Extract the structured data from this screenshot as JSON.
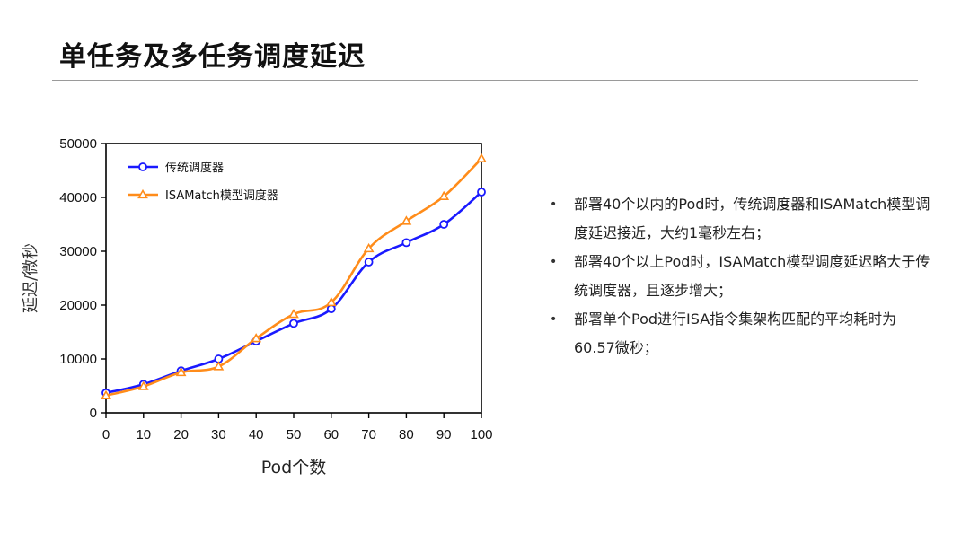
{
  "slide": {
    "title": "单任务及多任务调度延迟"
  },
  "bullets": [
    "部署40个以内的Pod时，传统调度器和ISAMatch模型调度延迟接近，大约1毫秒左右；",
    "部署40个以上Pod时，ISAMatch模型调度延迟略大于传统调度器，且逐步增大；",
    "部署单个Pod进行ISA指令集架构匹配的平均耗时为60.57微秒；"
  ],
  "chart_data": {
    "type": "line",
    "title": "",
    "xlabel": "Pod个数",
    "ylabel": "延迟/微秒",
    "x": [
      0,
      10,
      20,
      30,
      40,
      50,
      60,
      70,
      80,
      90,
      100
    ],
    "xlim": [
      0,
      100
    ],
    "ylim": [
      0,
      50000
    ],
    "xticks": [
      0,
      10,
      20,
      30,
      40,
      50,
      60,
      70,
      80,
      90,
      100
    ],
    "yticks": [
      0,
      10000,
      20000,
      30000,
      40000,
      50000
    ],
    "grid": false,
    "legend_position": "top-left",
    "series": [
      {
        "name": "传统调度器",
        "color": "#1a1aff",
        "marker": "circle",
        "values": [
          3700,
          5300,
          7800,
          10000,
          13300,
          16600,
          19300,
          28000,
          31600,
          35000,
          41000
        ]
      },
      {
        "name": "ISAMatch模型调度器",
        "color": "#ff8c1a",
        "marker": "triangle",
        "values": [
          3200,
          4900,
          7500,
          8600,
          13800,
          18300,
          20500,
          30500,
          35600,
          40200,
          47200
        ]
      }
    ]
  }
}
